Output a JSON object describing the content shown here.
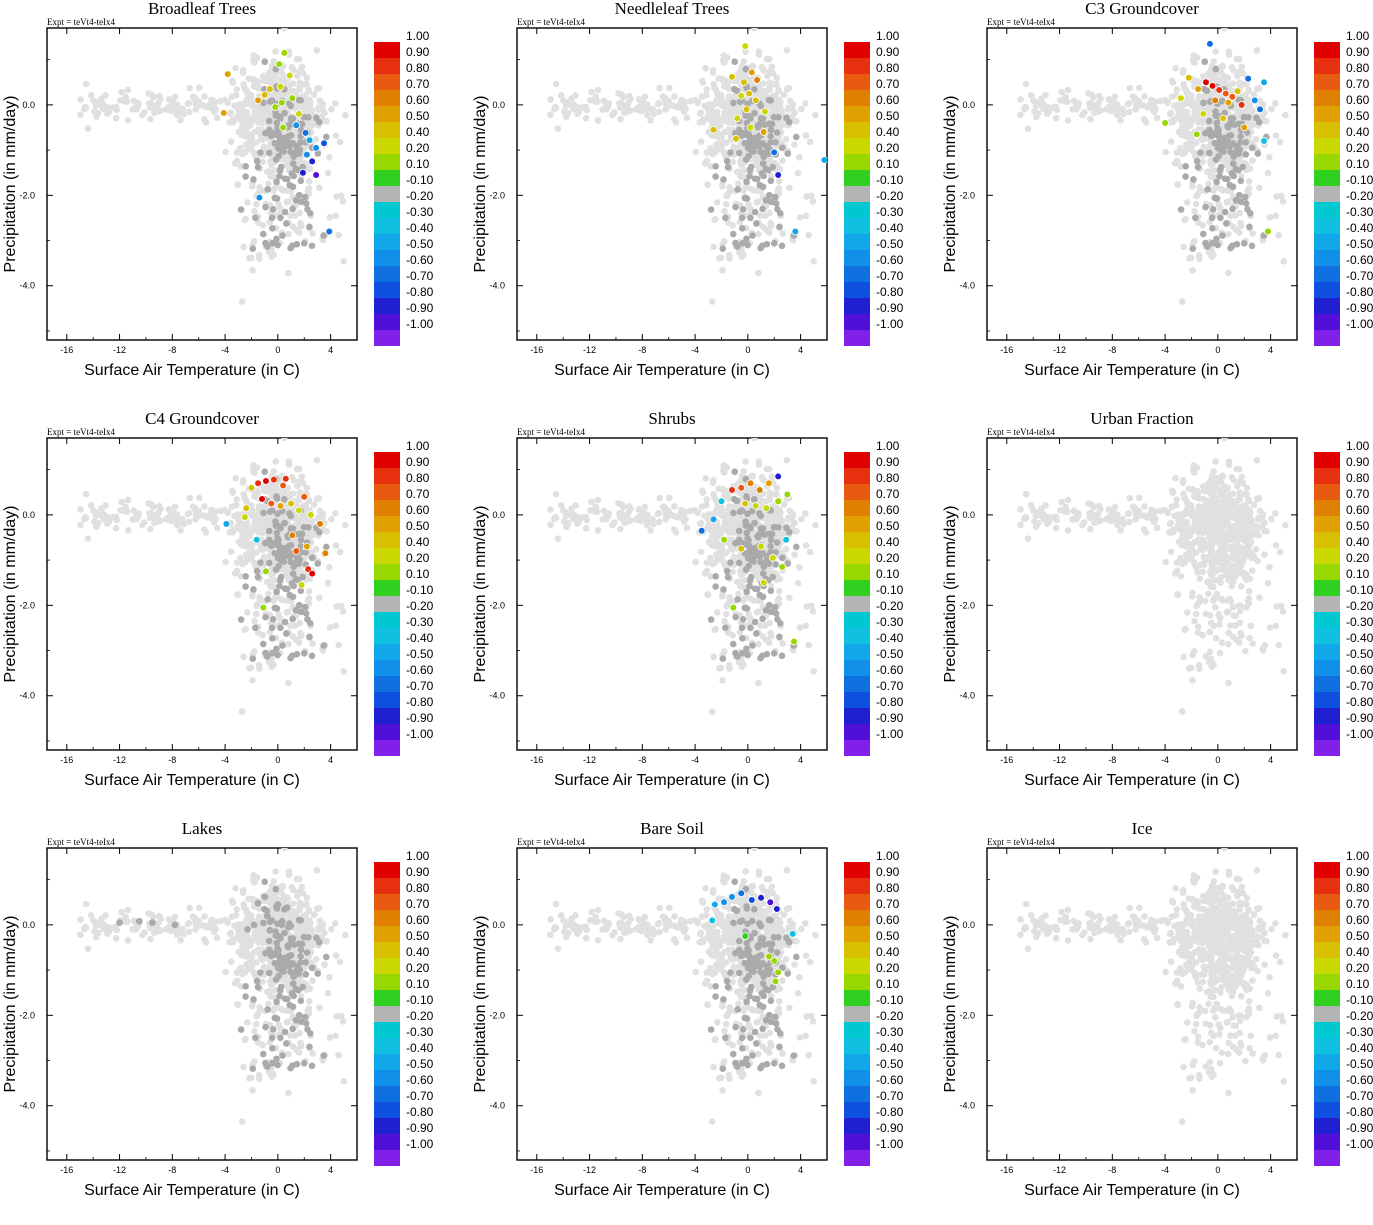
{
  "figure": {
    "experiment": "Expt = teVt4-teIx4",
    "xlabel": "Surface Air Temperature (in C)",
    "ylabel": "Precipitation (in mm/day)",
    "x_ticks": [
      "-16",
      "-12",
      "-8",
      "-4",
      "0",
      "4"
    ],
    "y_ticks": [
      "0.0",
      "-2.0",
      "-4.0"
    ],
    "colorbar_labels": [
      "1.00",
      "0.90",
      "0.80",
      "0.70",
      "0.60",
      "0.50",
      "0.40",
      "0.20",
      "0.10",
      "-0.10",
      "-0.20",
      "-0.30",
      "-0.40",
      "-0.50",
      "-0.60",
      "-0.70",
      "-0.80",
      "-0.90",
      "-1.00"
    ],
    "colorbar_colors": [
      "#e00000",
      "#e63010",
      "#e85a10",
      "#e08000",
      "#e0a000",
      "#d8c000",
      "#c8d800",
      "#98d800",
      "#30d020",
      "#b4b4b4",
      "#00c8d0",
      "#10c0e0",
      "#10a8e8",
      "#1090e8",
      "#1070e0",
      "#1050e0",
      "#2020d0",
      "#5010d8",
      "#8020e8"
    ],
    "colors": {
      "background_points": "#e0e0e0",
      "neutral_points": "#aaaaaa"
    }
  },
  "chart_data": [
    {
      "type": "scatter",
      "title": "Broadleaf Trees",
      "xlim": [
        -17.5,
        6
      ],
      "ylim": [
        -5.2,
        1.7
      ],
      "highlight": [
        [
          -3.8,
          0.68
        ],
        [
          -4.1,
          -0.18
        ],
        [
          -1.5,
          0.1
        ],
        [
          -1.0,
          0.22
        ],
        [
          -0.2,
          -0.05
        ],
        [
          0.1,
          0.9
        ],
        [
          0.5,
          1.15
        ],
        [
          0.2,
          0.4
        ],
        [
          0.9,
          0.65
        ],
        [
          1.1,
          0.15
        ],
        [
          0.4,
          -0.5
        ],
        [
          1.4,
          -0.45
        ],
        [
          2.1,
          -0.62
        ],
        [
          2.4,
          -0.78
        ],
        [
          2.9,
          -0.95
        ],
        [
          2.2,
          -1.1
        ],
        [
          3.5,
          -0.85
        ],
        [
          2.6,
          -1.25
        ],
        [
          2.9,
          -1.55
        ],
        [
          1.9,
          -1.5
        ],
        [
          3.9,
          -2.8
        ],
        [
          -1.4,
          -2.05
        ],
        [
          0.3,
          0.05
        ],
        [
          -0.6,
          0.35
        ],
        [
          1.6,
          -0.2
        ]
      ],
      "highlight_values": [
        0.62,
        0.6,
        0.6,
        0.5,
        0.2,
        0.2,
        0.2,
        0.3,
        0.3,
        0.2,
        0.15,
        -0.4,
        -0.5,
        -0.3,
        -0.4,
        -0.35,
        -0.6,
        -0.7,
        -0.8,
        -0.7,
        -0.5,
        -0.4,
        0.15,
        0.5,
        0.3
      ]
    },
    {
      "type": "scatter",
      "title": "Needleleaf Trees",
      "xlim": [
        -17.5,
        6
      ],
      "ylim": [
        -5.2,
        1.7
      ],
      "highlight": [
        [
          -1.2,
          0.62
        ],
        [
          -0.3,
          0.5
        ],
        [
          0.3,
          0.72
        ],
        [
          0.7,
          0.55
        ],
        [
          -0.5,
          0.2
        ],
        [
          0.1,
          0.25
        ],
        [
          0.6,
          0.1
        ],
        [
          -0.8,
          -0.3
        ],
        [
          0.2,
          -0.5
        ],
        [
          1.2,
          -0.6
        ],
        [
          -0.2,
          1.3
        ],
        [
          -2.6,
          -0.55
        ],
        [
          2.0,
          -1.05
        ],
        [
          2.3,
          -1.55
        ],
        [
          3.6,
          -2.8
        ],
        [
          5.8,
          -1.22
        ],
        [
          1.3,
          -0.15
        ],
        [
          -0.9,
          -0.75
        ],
        [
          -0.1,
          -0.1
        ]
      ],
      "highlight_values": [
        0.5,
        0.5,
        0.6,
        0.7,
        0.4,
        0.45,
        0.5,
        0.4,
        0.3,
        0.6,
        0.4,
        0.45,
        -0.5,
        -0.7,
        -0.3,
        -0.25,
        0.4,
        0.5,
        0.45
      ]
    },
    {
      "type": "scatter",
      "title": "C3 Groundcover",
      "xlim": [
        -17.5,
        6
      ],
      "ylim": [
        -5.2,
        1.7
      ],
      "highlight": [
        [
          -0.9,
          0.5
        ],
        [
          -0.4,
          0.42
        ],
        [
          0.1,
          0.33
        ],
        [
          0.6,
          0.25
        ],
        [
          1.1,
          0.18
        ],
        [
          -0.2,
          0.1
        ],
        [
          0.8,
          0.05
        ],
        [
          1.5,
          0.3
        ],
        [
          -1.5,
          0.35
        ],
        [
          -2.2,
          0.6
        ],
        [
          2.3,
          0.58
        ],
        [
          -2.8,
          0.15
        ],
        [
          3.5,
          0.5
        ],
        [
          3.2,
          -0.1
        ],
        [
          2.0,
          -0.5
        ],
        [
          -1.1,
          -0.2
        ],
        [
          -1.6,
          -0.65
        ],
        [
          -4.0,
          -0.4
        ],
        [
          3.5,
          -0.8
        ],
        [
          3.8,
          -2.8
        ],
        [
          1.8,
          0.0
        ],
        [
          0.4,
          -0.3
        ],
        [
          -0.6,
          1.35
        ],
        [
          2.8,
          0.1
        ]
      ],
      "highlight_values": [
        1.0,
        0.95,
        0.9,
        0.8,
        0.8,
        0.7,
        0.6,
        0.5,
        0.6,
        0.5,
        -0.5,
        0.3,
        -0.3,
        -0.5,
        0.6,
        0.4,
        0.2,
        0.15,
        -0.2,
        0.15,
        0.9,
        0.5,
        -0.5,
        -0.4
      ]
    },
    {
      "type": "scatter",
      "title": "C4 Groundcover",
      "xlim": [
        -17.5,
        6
      ],
      "ylim": [
        -5.2,
        1.7
      ],
      "highlight": [
        [
          -2.0,
          0.6
        ],
        [
          -1.5,
          0.7
        ],
        [
          -0.9,
          0.75
        ],
        [
          -0.3,
          0.78
        ],
        [
          0.4,
          0.65
        ],
        [
          -1.2,
          0.35
        ],
        [
          -0.5,
          0.25
        ],
        [
          0.2,
          0.2
        ],
        [
          1.0,
          0.25
        ],
        [
          1.6,
          0.1
        ],
        [
          -2.4,
          0.15
        ],
        [
          2.5,
          0.0
        ],
        [
          3.2,
          -0.2
        ],
        [
          1.1,
          -0.45
        ],
        [
          2.2,
          -0.7
        ],
        [
          1.4,
          -0.8
        ],
        [
          3.6,
          -0.85
        ],
        [
          2.3,
          -1.2
        ],
        [
          2.6,
          -1.3
        ],
        [
          1.8,
          -1.55
        ],
        [
          -0.9,
          -1.25
        ],
        [
          -1.1,
          -2.05
        ],
        [
          -2.5,
          -0.05
        ],
        [
          -3.9,
          -0.2
        ],
        [
          -1.6,
          -0.55
        ],
        [
          0.6,
          0.8
        ],
        [
          2.0,
          0.4
        ]
      ],
      "highlight_values": [
        0.5,
        0.9,
        1.0,
        0.9,
        0.8,
        1.0,
        0.8,
        0.6,
        0.5,
        0.4,
        0.5,
        0.4,
        0.7,
        0.7,
        0.6,
        0.8,
        0.7,
        0.9,
        1.0,
        0.3,
        0.2,
        0.15,
        0.4,
        -0.3,
        -0.2,
        0.9,
        0.8
      ]
    },
    {
      "type": "scatter",
      "title": "Shrubs",
      "xlim": [
        -17.5,
        6
      ],
      "ylim": [
        -5.2,
        1.7
      ],
      "highlight": [
        [
          -1.2,
          0.55
        ],
        [
          -0.5,
          0.6
        ],
        [
          0.2,
          0.7
        ],
        [
          0.9,
          0.55
        ],
        [
          1.6,
          0.7
        ],
        [
          -0.2,
          0.25
        ],
        [
          0.6,
          0.2
        ],
        [
          1.4,
          0.15
        ],
        [
          2.3,
          0.3
        ],
        [
          3.0,
          0.45
        ],
        [
          -2.6,
          -0.1
        ],
        [
          -3.5,
          -0.35
        ],
        [
          -1.8,
          -0.55
        ],
        [
          -0.5,
          -0.75
        ],
        [
          1.0,
          -0.7
        ],
        [
          1.9,
          -0.95
        ],
        [
          2.6,
          -1.15
        ],
        [
          2.9,
          -0.55
        ],
        [
          3.5,
          -2.8
        ],
        [
          -1.1,
          -2.05
        ],
        [
          2.3,
          0.85
        ],
        [
          -2.0,
          0.3
        ],
        [
          1.2,
          -1.5
        ]
      ],
      "highlight_values": [
        0.9,
        0.8,
        0.7,
        0.7,
        0.6,
        0.5,
        0.4,
        0.3,
        0.2,
        0.15,
        -0.3,
        -0.5,
        0.2,
        0.5,
        0.4,
        0.3,
        0.2,
        -0.2,
        0.15,
        0.2,
        -0.7,
        -0.2,
        0.4
      ]
    },
    {
      "type": "scatter",
      "title": "Urban Fraction",
      "xlim": [
        -17.5,
        6
      ],
      "ylim": [
        -5.2,
        1.7
      ],
      "highlight": [],
      "highlight_values": []
    },
    {
      "type": "scatter",
      "title": "Lakes",
      "xlim": [
        -17.5,
        6
      ],
      "ylim": [
        -5.2,
        1.7
      ],
      "highlight": [
        [
          -1.5,
          0.48
        ],
        [
          -1.0,
          0.62
        ],
        [
          -0.8,
          0.2
        ],
        [
          0.0,
          0.45
        ],
        [
          0.7,
          0.38
        ],
        [
          0.8,
          -0.05
        ],
        [
          -2.3,
          -0.1
        ],
        [
          -1.8,
          0.0
        ],
        [
          -7.8,
          0.0
        ],
        [
          -9.5,
          0.05
        ],
        [
          -10.5,
          0.08
        ],
        [
          -12.0,
          0.05
        ],
        [
          -0.6,
          -0.12
        ],
        [
          0.3,
          0.0
        ]
      ],
      "highlight_values": [
        0.02,
        0.03,
        0.01,
        0.02,
        -0.02,
        0.01,
        0.02,
        -0.01,
        0.01,
        0.02,
        0.0,
        0.01,
        0.02,
        0.0
      ]
    },
    {
      "type": "scatter",
      "title": "Bare Soil",
      "xlim": [
        -17.5,
        6
      ],
      "ylim": [
        -5.2,
        1.7
      ],
      "highlight": [
        [
          -2.5,
          0.45
        ],
        [
          -1.8,
          0.5
        ],
        [
          -1.2,
          0.62
        ],
        [
          -0.5,
          0.7
        ],
        [
          0.3,
          0.55
        ],
        [
          1.0,
          0.6
        ],
        [
          1.7,
          0.5
        ],
        [
          2.2,
          0.35
        ],
        [
          -2.7,
          0.1
        ],
        [
          -0.2,
          -0.25
        ],
        [
          1.6,
          -0.7
        ],
        [
          2.0,
          -0.8
        ],
        [
          2.3,
          -1.05
        ],
        [
          2.1,
          -1.25
        ],
        [
          3.4,
          -0.2
        ]
      ],
      "highlight_values": [
        -0.3,
        -0.35,
        -0.4,
        -0.5,
        -0.6,
        -0.7,
        -0.8,
        -0.65,
        -0.2,
        0.1,
        0.15,
        0.15,
        0.2,
        0.15,
        -0.2
      ]
    },
    {
      "type": "scatter",
      "title": "Ice",
      "xlim": [
        -17.5,
        6
      ],
      "ylim": [
        -5.2,
        1.7
      ],
      "highlight": [],
      "highlight_values": []
    }
  ]
}
